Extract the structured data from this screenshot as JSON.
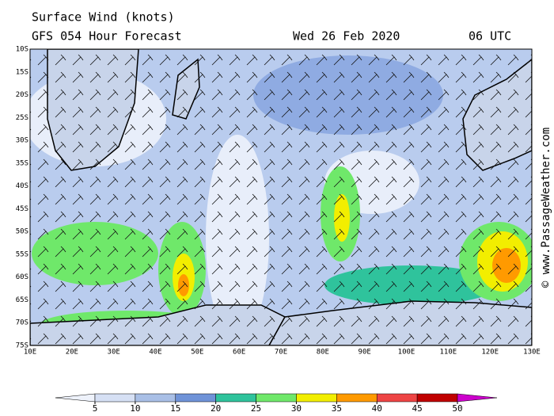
{
  "header": {
    "title": "Surface Wind (knots)",
    "subtitle": "GFS 054 Hour Forecast",
    "date": "Wed 26 Feb 2020",
    "time": "06 UTC"
  },
  "copyright": "© www.PassageWeather.com",
  "lat_labels": [
    "10S",
    "15S",
    "20S",
    "25S",
    "30S",
    "35S",
    "40S",
    "45S",
    "50S",
    "55S",
    "60S",
    "65S",
    "70S",
    "75S"
  ],
  "lon_labels": [
    "10E",
    "20E",
    "30E",
    "40E",
    "50E",
    "60E",
    "70E",
    "80E",
    "90E",
    "100E",
    "110E",
    "120E",
    "130E"
  ],
  "legend": {
    "labels": [
      5,
      10,
      15,
      20,
      25,
      30,
      35,
      40,
      45,
      50
    ],
    "colors": [
      "#eef2fb",
      "#d6e0f4",
      "#a9bfe6",
      "#6f93d8",
      "#2fc39c",
      "#6fe86a",
      "#f2ee00",
      "#ff9a00",
      "#ee4444",
      "#c00000",
      "#cc00cc"
    ]
  }
}
